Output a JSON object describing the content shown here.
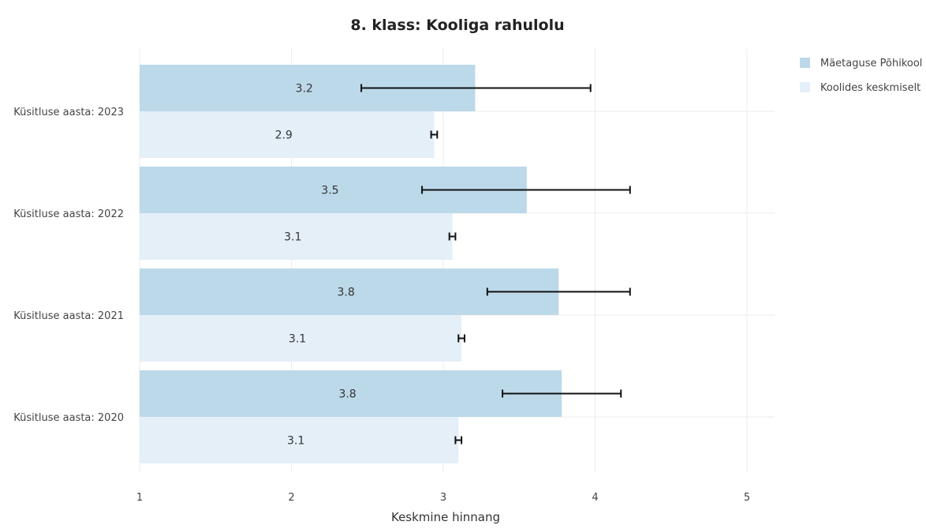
{
  "chart_data": {
    "type": "bar",
    "orientation": "horizontal",
    "title": "8. klass: Kooliga rahulolu",
    "xlabel": "Keskmine hinnang",
    "ylabel": "",
    "xlim": [
      1,
      5.2
    ],
    "x_ticks": [
      1,
      2,
      3,
      4,
      5
    ],
    "grid": true,
    "legend_position": "top-right",
    "categories": [
      "Küsitluse aasta: 2023",
      "Küsitluse aasta: 2022",
      "Küsitluse aasta: 2021",
      "Küsitluse aasta: 2020"
    ],
    "series": [
      {
        "name": "Mäetaguse Põhikool",
        "color": "#bcd9ea",
        "values": [
          3.21,
          3.55,
          3.76,
          3.78
        ],
        "labels": [
          "3.2",
          "3.5",
          "3.8",
          "3.8"
        ],
        "error_low": [
          2.46,
          2.86,
          3.29,
          3.39
        ],
        "error_high": [
          3.97,
          4.23,
          4.23,
          4.17
        ]
      },
      {
        "name": "Koolides keskmiselt",
        "color": "#e4eff8",
        "values": [
          2.94,
          3.06,
          3.12,
          3.1
        ],
        "labels": [
          "2.9",
          "3.1",
          "3.1",
          "3.1"
        ],
        "error_low": [
          2.92,
          3.04,
          3.1,
          3.08
        ],
        "error_high": [
          2.96,
          3.08,
          3.14,
          3.12
        ]
      }
    ]
  }
}
